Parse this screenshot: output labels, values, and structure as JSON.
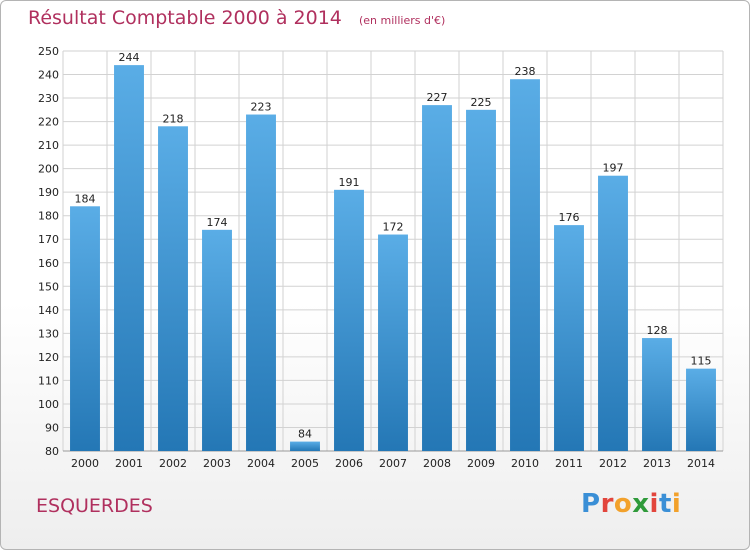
{
  "chart_data": {
    "type": "bar",
    "title": "Résultat Comptable 2000 à 2014",
    "subtitle": "(en milliers d'€)",
    "categories": [
      "2000",
      "2001",
      "2002",
      "2003",
      "2004",
      "2005",
      "2006",
      "2007",
      "2008",
      "2009",
      "2010",
      "2011",
      "2012",
      "2013",
      "2014"
    ],
    "values": [
      184,
      244,
      218,
      174,
      223,
      84,
      191,
      172,
      227,
      225,
      238,
      176,
      197,
      128,
      115
    ],
    "ylim": [
      80,
      250
    ],
    "yticks": [
      80,
      90,
      100,
      110,
      120,
      130,
      140,
      150,
      160,
      170,
      180,
      190,
      200,
      210,
      220,
      230,
      240,
      250
    ],
    "grid": true,
    "colors": {
      "bar_light": "#5aade6",
      "bar_dark": "#2477b5",
      "title": "#b0305e"
    }
  },
  "footer": {
    "town": "ESQUERDES",
    "brand_letters": [
      {
        "ch": "P",
        "color": "#3a8fd6"
      },
      {
        "ch": "r",
        "color": "#e2453c"
      },
      {
        "ch": "o",
        "color": "#f2a12b"
      },
      {
        "ch": "x",
        "color": "#2f9a3a"
      },
      {
        "ch": "i",
        "color": "#e2453c"
      },
      {
        "ch": "t",
        "color": "#3a8fd6"
      },
      {
        "ch": "i",
        "color": "#f2a12b"
      }
    ]
  }
}
